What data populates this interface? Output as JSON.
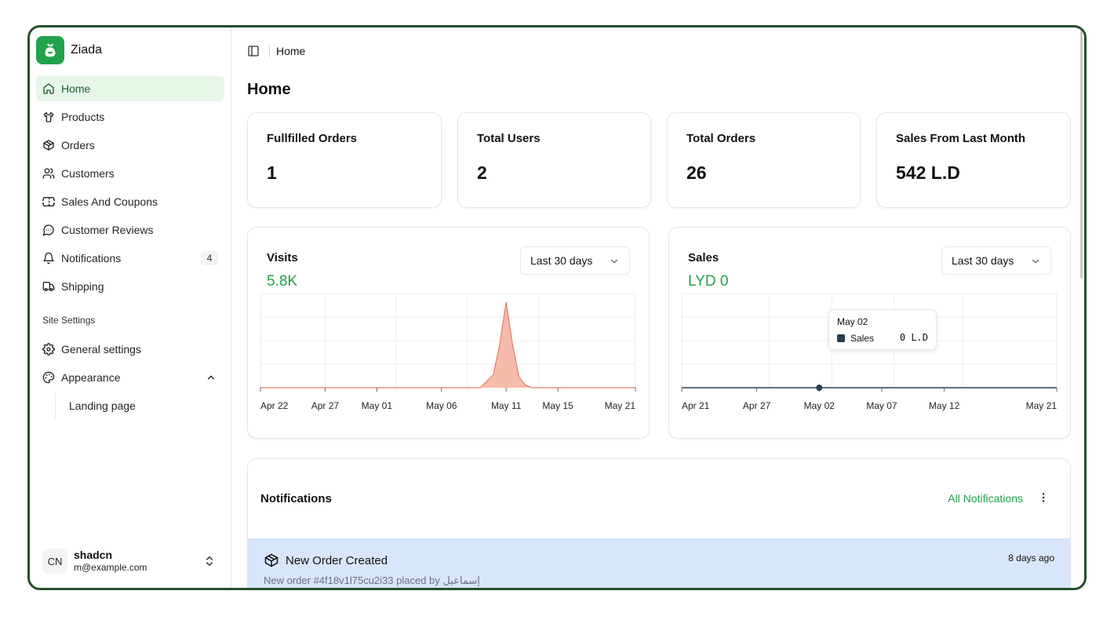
{
  "brand": {
    "name": "Ziada"
  },
  "sidebar": {
    "items": [
      {
        "label": "Home",
        "icon": "home-icon",
        "active": true
      },
      {
        "label": "Products",
        "icon": "shirt-icon"
      },
      {
        "label": "Orders",
        "icon": "package-icon"
      },
      {
        "label": "Customers",
        "icon": "users-icon"
      },
      {
        "label": "Sales And Coupons",
        "icon": "ticket-icon"
      },
      {
        "label": "Customer Reviews",
        "icon": "message-circle-icon"
      },
      {
        "label": "Notifications",
        "icon": "bell-icon",
        "badge": "4"
      },
      {
        "label": "Shipping",
        "icon": "truck-icon"
      }
    ],
    "group_label": "Site Settings",
    "settings": [
      {
        "label": "General settings",
        "icon": "gear-icon"
      },
      {
        "label": "Appearance",
        "icon": "palette-icon",
        "expanded": true
      }
    ],
    "sub_items": [
      {
        "label": "Landing page"
      }
    ],
    "user": {
      "initials": "CN",
      "name": "shadcn",
      "email": "m@example.com"
    }
  },
  "header": {
    "breadcrumb": "Home"
  },
  "page": {
    "title": "Home"
  },
  "stats": [
    {
      "title": "Fullfilled Orders",
      "value": "1"
    },
    {
      "title": "Total Users",
      "value": "2"
    },
    {
      "title": "Total Orders",
      "value": "26"
    },
    {
      "title": "Sales From Last Month",
      "value": "542 L.D"
    }
  ],
  "visits": {
    "title": "Visits",
    "value": "5.8K",
    "range": "Last 30 days"
  },
  "sales": {
    "title": "Sales",
    "value": "LYD 0",
    "range": "Last 30 days",
    "tooltip": {
      "date": "May 02",
      "series": "Sales",
      "value": "0 L.D"
    }
  },
  "chart_data": [
    {
      "type": "area",
      "ticks": [
        "Apr 22",
        "Apr 27",
        "May 01",
        "May 06",
        "May 11",
        "May 15",
        "May 21"
      ],
      "tick_days": [
        0,
        5,
        9,
        14,
        19,
        23,
        29
      ],
      "x": [
        0,
        17,
        18,
        18.5,
        19,
        19.5,
        20,
        20.5,
        21,
        22,
        29
      ],
      "values": [
        0,
        0,
        0.15,
        0.5,
        1.0,
        0.5,
        0.12,
        0.03,
        0,
        0,
        0
      ],
      "ylim": [
        0,
        1.1
      ],
      "color": "#f3a48f",
      "grid": true
    },
    {
      "type": "line",
      "ticks": [
        "Apr 21",
        "Apr 27",
        "May 02",
        "May 07",
        "May 12",
        "May 21"
      ],
      "tick_days": [
        0,
        6,
        11,
        16,
        21,
        30
      ],
      "x": [
        0,
        30
      ],
      "values": [
        0,
        0
      ],
      "highlight_day": 11,
      "ylim": [
        0,
        1
      ],
      "color": "#25414d",
      "grid": true
    }
  ],
  "notifications": {
    "title": "Notifications",
    "all_label": "All Notifications",
    "item": {
      "title": "New Order Created",
      "time": "8 days ago",
      "description": "New order #4f18v1l75cu2i33 placed by إسماعيل"
    }
  }
}
